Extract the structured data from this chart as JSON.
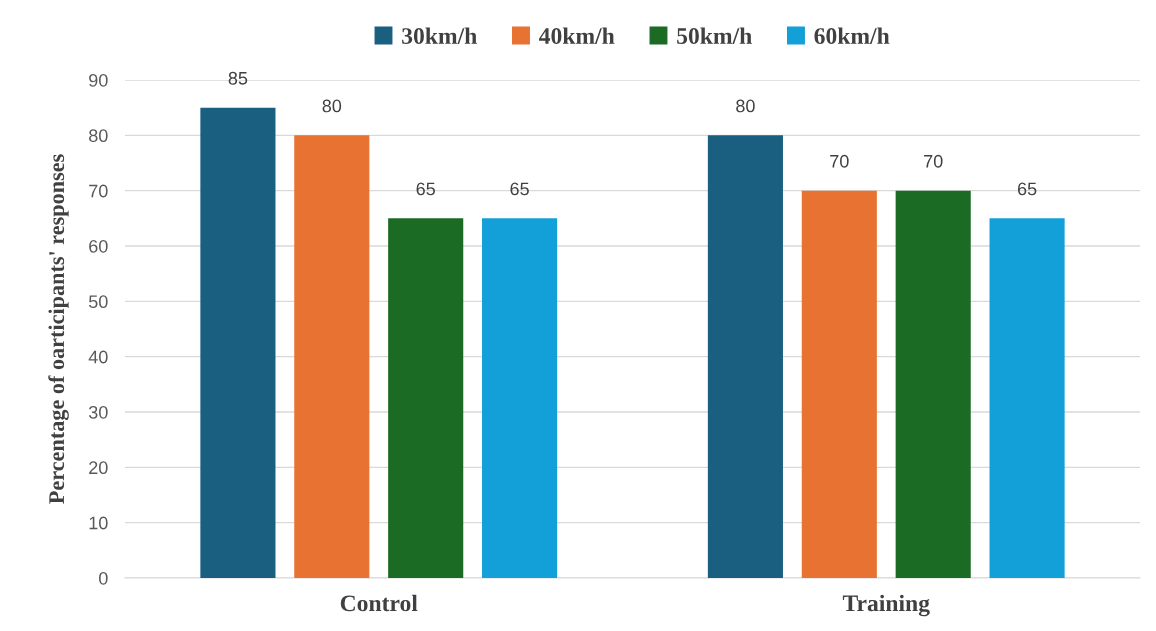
{
  "chart_data": {
    "type": "bar",
    "ylabel": "Percentage of oarticipants' responses",
    "categories": [
      "Control",
      "Training"
    ],
    "series": [
      {
        "name": "30km/h",
        "color": "#1a5f80",
        "values": [
          85,
          80
        ]
      },
      {
        "name": "40km/h",
        "color": "#e87232",
        "values": [
          80,
          70
        ]
      },
      {
        "name": "50km/h",
        "color": "#1b6b24",
        "values": [
          65,
          70
        ]
      },
      {
        "name": "60km/h",
        "color": "#139fd8",
        "values": [
          65,
          65
        ]
      }
    ],
    "ylim": [
      0,
      90
    ],
    "yticks": [
      0,
      10,
      20,
      30,
      40,
      50,
      60,
      70,
      80,
      90
    ],
    "grid": "y",
    "legend": "top",
    "data_labels": true
  }
}
